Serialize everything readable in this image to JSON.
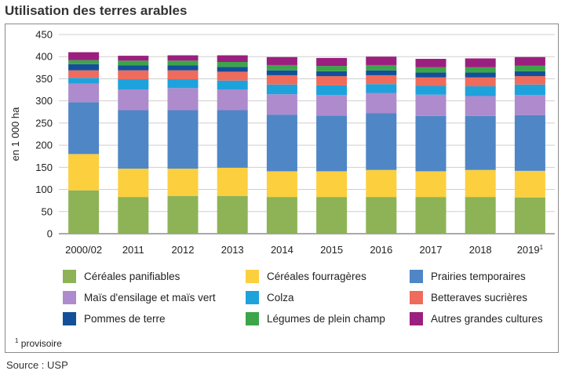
{
  "title": "Utilisation des terres arables",
  "footnote": {
    "mark": "1",
    "text": "provisoire"
  },
  "source": "Source : USP",
  "chart_data": {
    "type": "bar",
    "stacked": true,
    "title": "Utilisation des terres arables",
    "xlabel": "",
    "ylabel": "en 1 000 ha",
    "ylim": [
      0,
      450
    ],
    "yticks": [
      0,
      50,
      100,
      150,
      200,
      250,
      300,
      350,
      400,
      450
    ],
    "grid": true,
    "legend_position": "bottom",
    "categories": [
      "2000/02",
      "2011",
      "2012",
      "2013",
      "2014",
      "2015",
      "2016",
      "2017",
      "2018",
      "2019"
    ],
    "category_notes": [
      "",
      "",
      "",
      "",
      "",
      "",
      "",
      "",
      "",
      "1"
    ],
    "series": [
      {
        "name": "Céréales panifiables",
        "color": "#8db356",
        "values": [
          98,
          83,
          85,
          85,
          83,
          83,
          83,
          83,
          83,
          82
        ]
      },
      {
        "name": "Céréales fourragères",
        "color": "#fccf3e",
        "values": [
          82,
          64,
          62,
          64,
          58,
          58,
          61,
          58,
          61,
          60
        ]
      },
      {
        "name": "Prairies temporaires",
        "color": "#4f86c6",
        "values": [
          117,
          132,
          132,
          130,
          128,
          126,
          128,
          125,
          122,
          126
        ]
      },
      {
        "name": "Maïs d'ensilage et maïs vert",
        "color": "#ae8bcc",
        "values": [
          42,
          47,
          50,
          47,
          46,
          46,
          46,
          48,
          45,
          45
        ]
      },
      {
        "name": "Colza",
        "color": "#1ea2dc",
        "values": [
          13,
          23,
          20,
          20,
          22,
          22,
          20,
          20,
          22,
          24
        ]
      },
      {
        "name": "Betteraves sucrières",
        "color": "#ef6b5b",
        "values": [
          17,
          20,
          20,
          20,
          21,
          21,
          20,
          19,
          20,
          19
        ]
      },
      {
        "name": "Pommes de terre",
        "color": "#144f9a",
        "values": [
          14,
          11,
          11,
          11,
          11,
          11,
          11,
          11,
          11,
          11
        ]
      },
      {
        "name": "Légumes de plein champ",
        "color": "#3ca54a",
        "values": [
          9,
          11,
          11,
          11,
          12,
          12,
          12,
          12,
          12,
          13
        ]
      },
      {
        "name": "Autres grandes cultures",
        "color": "#9b1f7e",
        "values": [
          18,
          11,
          12,
          15,
          18,
          18,
          19,
          19,
          20,
          19
        ]
      }
    ]
  }
}
